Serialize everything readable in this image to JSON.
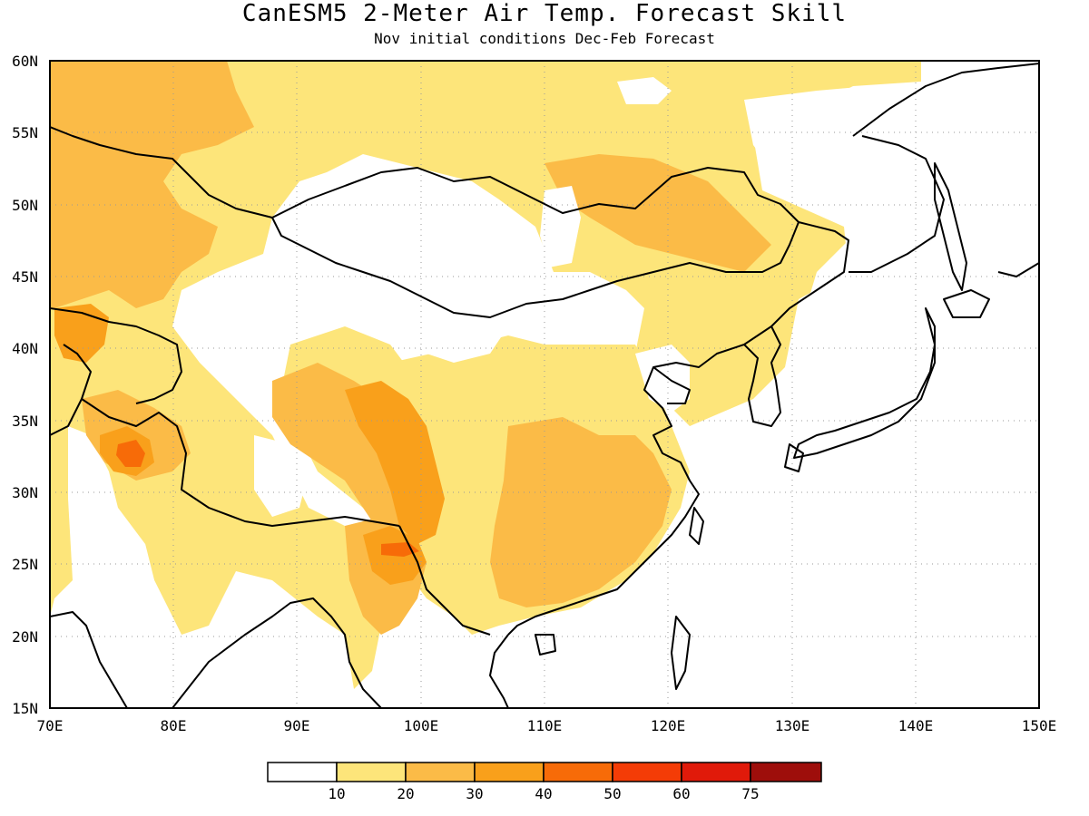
{
  "title": "CanESM5 2-Meter Air Temp. Forecast Skill",
  "subtitle": "Nov initial conditions  Dec-Feb Forecast",
  "map": {
    "lon_range": [
      70,
      150
    ],
    "lat_range": [
      15,
      60
    ],
    "lon_ticks": [
      "70E",
      "80E",
      "90E",
      "100E",
      "110E",
      "120E",
      "130E",
      "140E",
      "150E"
    ],
    "lat_ticks": [
      "15N",
      "20N",
      "25N",
      "30N",
      "35N",
      "40N",
      "45N",
      "50N",
      "55N",
      "60N"
    ],
    "gridlines": "dotted"
  },
  "colorbar": {
    "colors": [
      "#ffffff",
      "#fde57a",
      "#fbbb47",
      "#f9a01b",
      "#f76b08",
      "#f43c06",
      "#e01a0a",
      "#9e0e0b"
    ],
    "labels": [
      "10",
      "20",
      "30",
      "40",
      "50",
      "60",
      "75"
    ]
  }
}
